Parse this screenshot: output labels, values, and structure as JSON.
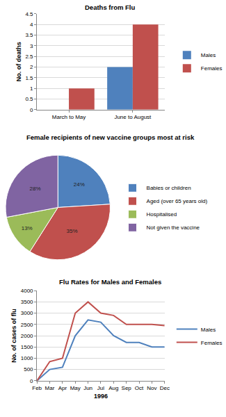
{
  "chart_data": [
    {
      "type": "bar",
      "title": "Deaths from Flu",
      "y_label": "No. of deaths",
      "categories": [
        "March to May",
        "June to August"
      ],
      "series": [
        {
          "name": "Males",
          "color": "#4f81bd",
          "values": [
            0,
            2
          ]
        },
        {
          "name": "Females",
          "color": "#c0504d",
          "values": [
            1,
            4
          ]
        }
      ],
      "ylim": [
        0,
        4.5
      ],
      "yticks": [
        0,
        0.5,
        1,
        1.5,
        2,
        2.5,
        3,
        3.5,
        4,
        4.5
      ],
      "grid": true,
      "legend": "right"
    },
    {
      "type": "pie",
      "title": "Female recipients of new vaccine groups most at risk",
      "categories": [
        "Babies or children",
        "Aged (over 65 years old)",
        "Hospitalised",
        "Not given the vaccine"
      ],
      "values": [
        24,
        35,
        13,
        28
      ],
      "value_labels": [
        "24%",
        "35%",
        "13%",
        "28%"
      ],
      "colors": [
        "#4f81bd",
        "#c0504d",
        "#9bbb59",
        "#8064a2"
      ],
      "data_labels": true,
      "legend": "right"
    },
    {
      "type": "line",
      "title": "Flu Rates for Males and Females",
      "x_label": "1996",
      "y_label": "No. of cases of flu",
      "categories": [
        "Feb",
        "Mar",
        "Apr",
        "May",
        "Jun",
        "Jul",
        "Aug",
        "Sep",
        "Oct",
        "Nov",
        "Dec"
      ],
      "series": [
        {
          "name": "Males",
          "color": "#4f81bd",
          "values": [
            0,
            500,
            600,
            2000,
            2700,
            2600,
            2000,
            1700,
            1700,
            1500,
            1500
          ]
        },
        {
          "name": "Females",
          "color": "#c0504d",
          "values": [
            0,
            850,
            1000,
            3000,
            3500,
            3000,
            2900,
            2500,
            2500,
            2500,
            2450
          ]
        }
      ],
      "ylim": [
        0,
        4000
      ],
      "yticks": [
        0,
        500,
        1000,
        1500,
        2000,
        2500,
        3000,
        3500,
        4000
      ],
      "grid": true,
      "legend": "right"
    }
  ]
}
